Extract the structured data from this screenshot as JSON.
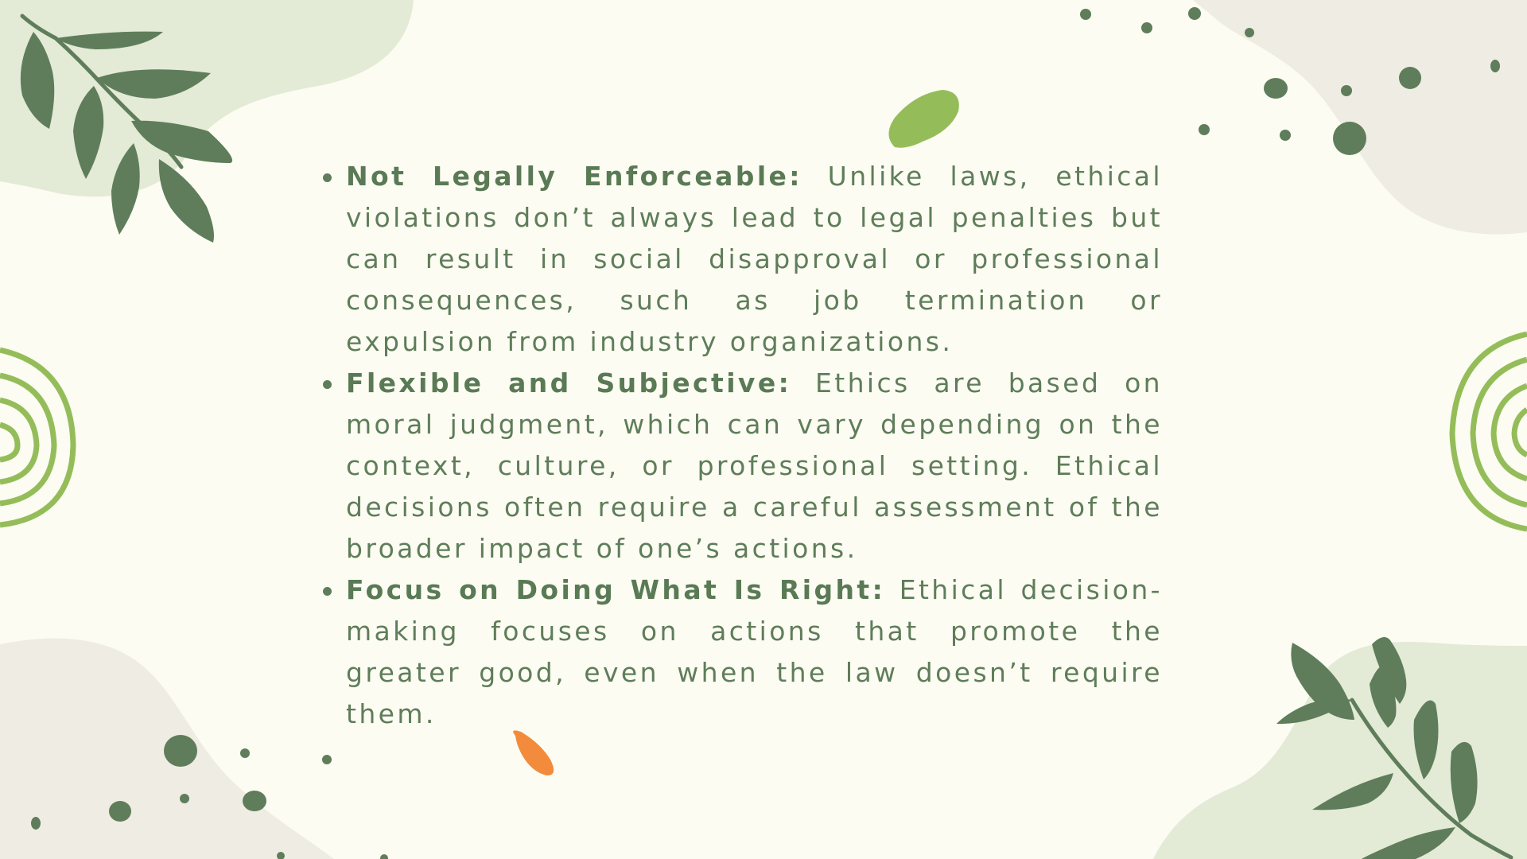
{
  "slide": {
    "palette": {
      "background": "#fcfcf2",
      "text": "#5f7d5a",
      "leaf_dark": "#5f7d5a",
      "leaf_light": "#94bd5a",
      "blob_green": "#e3ead6",
      "blob_beige": "#efede3",
      "accent_orange": "#f28b3b"
    },
    "bullets": [
      {
        "term": "Not Legally Enforceable:",
        "text": " Unlike laws, ethical violations don’t always lead to legal penalties but can result in social disapproval or professional consequences, such as job termination or expulsion from industry organizations."
      },
      {
        "term": "Flexible and Subjective:",
        "text": " Ethics are based on moral judgment, which can vary depending on the context, culture, or professional setting. Ethical decisions often require a careful assessment of the broader impact of one’s actions."
      },
      {
        "term": "Focus on Doing What Is Right:",
        "text": " Ethical decision-making focuses on actions that promote the greater good, even when the law doesn’t require them."
      }
    ]
  }
}
